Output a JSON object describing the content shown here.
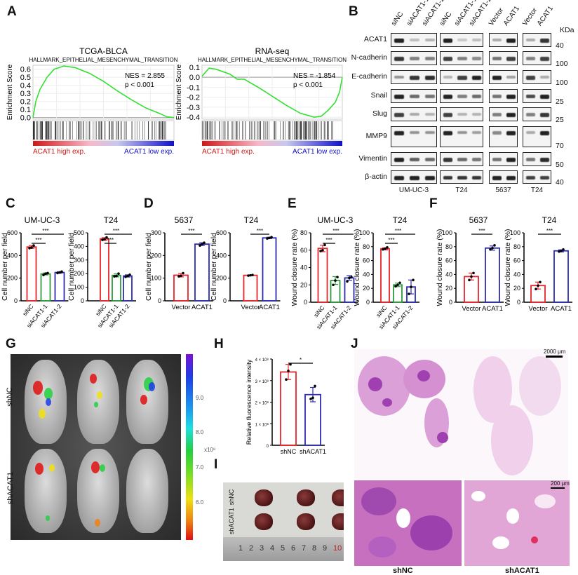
{
  "panel_labels": {
    "A": "A",
    "B": "B",
    "C": "C",
    "D": "D",
    "E": "E",
    "F": "F",
    "G": "G",
    "H": "H",
    "I": "I",
    "J": "J"
  },
  "chart_data": [
    {
      "id": "A1",
      "type": "line",
      "title": "TCGA-BLCA",
      "subtitle": "HALLMARK_EPITHELIAL_MESENCHYMAL_TRANSITION",
      "ylabel": "Enrichment Score",
      "ylim": [
        -0.02,
        0.65
      ],
      "yticks": [
        "0.0",
        "0.1",
        "0.2",
        "0.3",
        "0.4",
        "0.5",
        "0.6"
      ],
      "ytick_values": [
        0,
        0.1,
        0.2,
        0.3,
        0.4,
        0.5,
        0.6
      ],
      "x": [
        0,
        0.02,
        0.05,
        0.1,
        0.15,
        0.22,
        0.3,
        0.4,
        0.5,
        0.6,
        0.7,
        0.8,
        0.9,
        0.95,
        1
      ],
      "y": [
        0,
        0.2,
        0.35,
        0.5,
        0.6,
        0.64,
        0.62,
        0.55,
        0.45,
        0.33,
        0.22,
        0.12,
        0.05,
        0.01,
        0
      ],
      "annotation": [
        "NES = 2.855",
        "p < 0.001"
      ],
      "legend_high": "ACAT1 high exp.",
      "legend_low": "ACAT1 low exp.",
      "line_color": "#33e033",
      "grid": true
    },
    {
      "id": "A2",
      "type": "line",
      "title": "RNA-seq",
      "subtitle": "HALLMARK_EPITHELIAL_MESENCHYMAL_TRANSITION",
      "ylabel": "Enrichment Score",
      "ylim": [
        -0.42,
        0.12
      ],
      "yticks": [
        "-0.4",
        "-0.3",
        "-0.2",
        "-0.1",
        "0.0",
        "0.1"
      ],
      "ytick_values": [
        -0.4,
        -0.3,
        -0.2,
        -0.1,
        0,
        0.1
      ],
      "x": [
        0,
        0.05,
        0.1,
        0.2,
        0.25,
        0.3,
        0.4,
        0.5,
        0.6,
        0.7,
        0.8,
        0.85,
        0.9,
        0.95,
        0.98,
        1
      ],
      "y": [
        0.01,
        0.09,
        0.08,
        0.03,
        -0.02,
        -0.02,
        -0.1,
        -0.19,
        -0.28,
        -0.36,
        -0.4,
        -0.39,
        -0.33,
        -0.25,
        -0.15,
        0
      ],
      "annotation": [
        "NES = -1.854",
        "p < 0.001"
      ],
      "legend_high": "ACAT1 high exp.",
      "legend_low": "ACAT1 low exp.",
      "line_color": "#33e033",
      "grid": true
    },
    {
      "id": "C1",
      "type": "bar",
      "title": "UM-UC-3",
      "ylabel": "Cell number per field",
      "categories": [
        "siNC",
        "siACAT1-1",
        "siACAT1-2"
      ],
      "values": [
        475,
        237,
        250
      ],
      "points": [
        [
          465,
          470,
          488
        ],
        [
          228,
          240,
          245
        ],
        [
          245,
          250,
          258
        ]
      ],
      "ylim": [
        0,
        600
      ],
      "yticks": [
        "0",
        "200",
        "400",
        "600"
      ],
      "ytick_values": [
        0,
        200,
        400,
        600
      ],
      "colors": [
        "#e8242a",
        "#2e9a3c",
        "#2b2bb0"
      ],
      "significance": [
        {
          "from": 0,
          "to": 1,
          "label": "***"
        },
        {
          "from": 0,
          "to": 2,
          "label": "***"
        }
      ]
    },
    {
      "id": "C2",
      "type": "bar",
      "title": "T24",
      "ylabel": "Cell number per field",
      "categories": [
        "siNC",
        "siACAT1-1",
        "siACAT1-2"
      ],
      "values": [
        455,
        187,
        183
      ],
      "points": [
        [
          448,
          452,
          466
        ],
        [
          180,
          182,
          200
        ],
        [
          176,
          182,
          192
        ]
      ],
      "ylim": [
        0,
        500
      ],
      "yticks": [
        "0",
        "100",
        "200",
        "300",
        "400",
        "500"
      ],
      "ytick_values": [
        0,
        100,
        200,
        300,
        400,
        500
      ],
      "colors": [
        "#e8242a",
        "#2e9a3c",
        "#2b2bb0"
      ],
      "significance": [
        {
          "from": 0,
          "to": 1,
          "label": "***"
        },
        {
          "from": 0,
          "to": 2,
          "label": "***"
        }
      ]
    },
    {
      "id": "D1",
      "type": "bar",
      "title": "5637",
      "ylabel": "Cell number per field",
      "categories": [
        "Vector",
        "ACAT1"
      ],
      "values": [
        113,
        250
      ],
      "points": [
        [
          108,
          110,
          122
        ],
        [
          244,
          250,
          256
        ]
      ],
      "ylim": [
        0,
        300
      ],
      "yticks": [
        "0",
        "100",
        "200",
        "300"
      ],
      "ytick_values": [
        0,
        100,
        200,
        300
      ],
      "colors": [
        "#e8242a",
        "#2b2bb0"
      ],
      "significance": [
        {
          "from": 0,
          "to": 1,
          "label": "***"
        }
      ]
    },
    {
      "id": "D2",
      "type": "bar",
      "title": "T24",
      "ylabel": "Cell number per field",
      "categories": [
        "Vector",
        "ACAT1"
      ],
      "values": [
        225,
        555
      ],
      "points": [
        [
          222,
          225,
          228
        ],
        [
          550,
          555,
          562
        ]
      ],
      "ylim": [
        0,
        600
      ],
      "yticks": [
        "0",
        "200",
        "400",
        "600"
      ],
      "ytick_values": [
        0,
        200,
        400,
        600
      ],
      "colors": [
        "#e8242a",
        "#2b2bb0"
      ],
      "significance": [
        {
          "from": 0,
          "to": 1,
          "label": "***"
        }
      ]
    },
    {
      "id": "E1",
      "type": "bar",
      "title": "UM-UC-3",
      "ylabel": "Wound closure rate (%)",
      "categories": [
        "siNC",
        "siACAT1-1",
        "siACAT1-2"
      ],
      "values": [
        62,
        25,
        28
      ],
      "points": [
        [
          59,
          60,
          66
        ],
        [
          20,
          25,
          29
        ],
        [
          24,
          28,
          29
        ]
      ],
      "ylim": [
        0,
        80
      ],
      "yticks": [
        "0",
        "20",
        "40",
        "60",
        "80"
      ],
      "ytick_values": [
        0,
        20,
        40,
        60,
        80
      ],
      "colors": [
        "#e8242a",
        "#2e9a3c",
        "#2b2bb0"
      ],
      "significance": [
        {
          "from": 0,
          "to": 1,
          "label": "***"
        },
        {
          "from": 0,
          "to": 2,
          "label": "***"
        }
      ]
    },
    {
      "id": "E2",
      "type": "bar",
      "title": "T24",
      "ylabel": "Wound closure rate (%)",
      "categories": [
        "siNC",
        "siACAT1-1",
        "siACAT1-2"
      ],
      "values": [
        77,
        25,
        22
      ],
      "points": [
        [
          76,
          77,
          79
        ],
        [
          23,
          25,
          28
        ],
        [
          12,
          22,
          32
        ]
      ],
      "ylim": [
        0,
        100
      ],
      "yticks": [
        "0",
        "20",
        "40",
        "60",
        "80",
        "100"
      ],
      "ytick_values": [
        0,
        20,
        40,
        60,
        80,
        100
      ],
      "colors": [
        "#e8242a",
        "#2e9a3c",
        "#2b2bb0"
      ],
      "significance": [
        {
          "from": 0,
          "to": 1,
          "label": "***"
        },
        {
          "from": 0,
          "to": 2,
          "label": "***"
        }
      ]
    },
    {
      "id": "F1",
      "type": "bar",
      "title": "5637",
      "ylabel": "Wound closure rate (%)",
      "categories": [
        "Vector",
        "ACAT1"
      ],
      "values": [
        37,
        78
      ],
      "points": [
        [
          32,
          37,
          42
        ],
        [
          76,
          78,
          82
        ]
      ],
      "ylim": [
        0,
        100
      ],
      "yticks": [
        "0",
        "20",
        "40",
        "60",
        "80",
        "100"
      ],
      "ytick_values": [
        0,
        20,
        40,
        60,
        80,
        100
      ],
      "colors": [
        "#e8242a",
        "#2b2bb0"
      ],
      "significance": [
        {
          "from": 0,
          "to": 1,
          "label": "***"
        }
      ]
    },
    {
      "id": "F2",
      "type": "bar",
      "title": "T24",
      "ylabel": "Wound closure rate (%)",
      "categories": [
        "Vector",
        "ACAT1"
      ],
      "values": [
        24,
        74
      ],
      "points": [
        [
          19,
          24,
          29
        ],
        [
          73,
          74,
          76
        ]
      ],
      "ylim": [
        0,
        100
      ],
      "yticks": [
        "0",
        "20",
        "40",
        "60",
        "80",
        "100"
      ],
      "ytick_values": [
        0,
        20,
        40,
        60,
        80,
        100
      ],
      "colors": [
        "#e8242a",
        "#2b2bb0"
      ],
      "significance": [
        {
          "from": 0,
          "to": 1,
          "label": "***"
        }
      ]
    },
    {
      "id": "H",
      "type": "bar",
      "title": "",
      "ylabel": "Relative fluorescence intensity",
      "categories": [
        "shNC",
        "shACAT1"
      ],
      "values": [
        340000000,
        235000000
      ],
      "points": [
        [
          305000000,
          345000000,
          375000000
        ],
        [
          215000000,
          220000000,
          275000000
        ]
      ],
      "ylim": [
        0,
        400000000
      ],
      "yticks": [
        "0",
        "1 × 10⁸",
        "2 × 10⁸",
        "3 × 10⁸",
        "4 × 10⁸"
      ],
      "ytick_values": [
        0,
        100000000,
        200000000,
        300000000,
        400000000
      ],
      "colors": [
        "#e8242a",
        "#2b2bb0"
      ],
      "significance": [
        {
          "from": 0,
          "to": 1,
          "label": "*"
        }
      ]
    }
  ],
  "western_blot": {
    "kda_label": "KDa",
    "lanes": [
      [
        "siNC",
        "siACAT1-1",
        "siACAT1-2"
      ],
      [
        "siNC",
        "siACAT1-1",
        "siACAT1-2"
      ],
      [
        "Vector",
        "ACAT1"
      ],
      [
        "Vector",
        "ACAT1"
      ]
    ],
    "cell_lines": [
      "UM-UC-3",
      "T24",
      "5637",
      "T24"
    ],
    "rows": [
      {
        "label": "ACAT1",
        "kda": "40",
        "intensity": [
          [
            1,
            0.25,
            0.3
          ],
          [
            1,
            0.2,
            0.25
          ],
          [
            0.35,
            1
          ],
          [
            0.35,
            0.9
          ]
        ]
      },
      {
        "label": "N-cadherin",
        "kda": "100",
        "intensity": [
          [
            0.9,
            0.55,
            0.55
          ],
          [
            0.85,
            0.55,
            0.5
          ],
          [
            0.6,
            0.85
          ],
          [
            0.55,
            0.85
          ]
        ]
      },
      {
        "label": "E-cadherin",
        "kda": "100",
        "intensity": [
          [
            0.45,
            0.9,
            0.95
          ],
          [
            0.3,
            0.85,
            1
          ],
          [
            1,
            0.4
          ],
          [
            0.85,
            0.35
          ]
        ]
      },
      {
        "label": "Snail",
        "kda": "25",
        "intensity": [
          [
            1,
            0.65,
            0.6
          ],
          [
            1,
            0.55,
            0.65
          ],
          [
            0.6,
            1
          ],
          [
            0.8,
            1
          ]
        ]
      },
      {
        "label": "Slug",
        "kda": "25",
        "intensity": [
          [
            0.85,
            0.35,
            0.3
          ],
          [
            0.85,
            0.3,
            0.3
          ],
          [
            0.55,
            1
          ],
          [
            0.55,
            0.9
          ]
        ]
      },
      {
        "label": "MMP9",
        "kda": "70",
        "intensity": [
          [
            1,
            0.45,
            0.45
          ],
          [
            1,
            0.45,
            0.4
          ],
          [
            0.5,
            1
          ],
          [
            0.35,
            1
          ]
        ]
      },
      {
        "label": "Vimentin",
        "kda": "50",
        "intensity": [
          [
            1,
            0.7,
            0.65
          ],
          [
            0.9,
            0.65,
            0.6
          ],
          [
            0.6,
            1
          ],
          [
            0.6,
            0.95
          ]
        ]
      },
      {
        "label": "β-actin",
        "kda": "40",
        "intensity": [
          [
            1,
            1,
            1
          ],
          [
            0.9,
            0.9,
            0.9
          ],
          [
            1,
            1
          ],
          [
            0.85,
            0.85
          ]
        ]
      }
    ]
  },
  "panel_g": {
    "rows": [
      "shNC",
      "shACAT1"
    ],
    "colorbar_ticks": [
      "9.0",
      "8.0",
      "7.0",
      "6.0"
    ],
    "colorbar_unit": "x10⁸"
  },
  "panel_i": {
    "rows": [
      "shNC",
      "shACAT1"
    ],
    "ruler": [
      "1",
      "2",
      "3",
      "4",
      "5",
      "6",
      "7",
      "8",
      "9",
      "10"
    ]
  },
  "panel_j": {
    "scale_top": "2000 μm",
    "scale_bottom": "200 μm",
    "labels": [
      "shNC",
      "shACAT1"
    ]
  }
}
